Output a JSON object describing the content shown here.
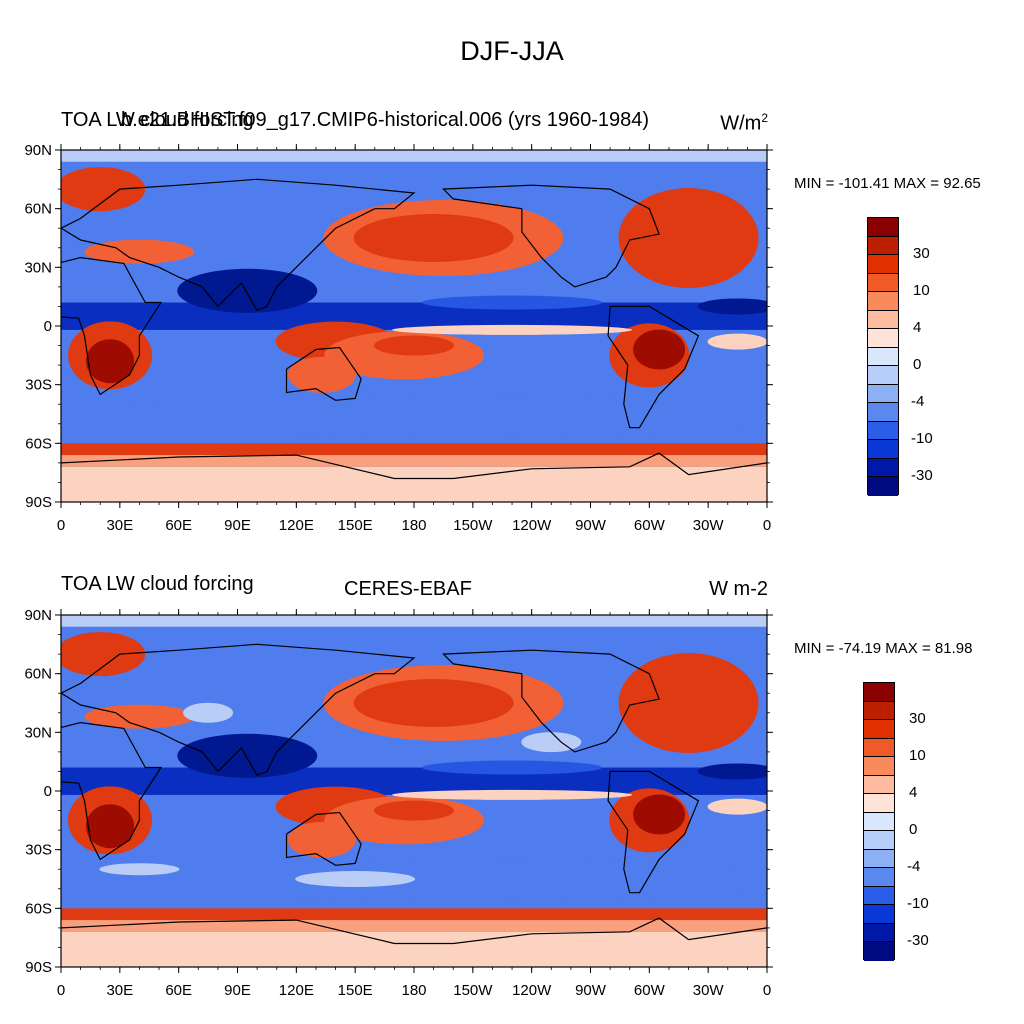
{
  "main_title": "DJF-JJA",
  "panels": [
    {
      "left_title": "TOA LW cloud forcing",
      "center_title": "b.e21.BHIST.f09_g17.CMIP6-historical.006 (yrs 1960-1984)",
      "units_main": "W/m",
      "units_sup": "2",
      "minmax": "MIN = -101.41 MAX =  92.65"
    },
    {
      "left_title": "TOA LW cloud forcing",
      "center_title": "CERES-EBAF",
      "units_main": "W m-2",
      "units_sup": "",
      "minmax": "MIN = -74.19 MAX =  81.98"
    }
  ],
  "lat_labels": [
    "90N",
    "60N",
    "30N",
    "0",
    "30S",
    "60S",
    "90S"
  ],
  "lon_labels": [
    "0",
    "30E",
    "60E",
    "90E",
    "120E",
    "150E",
    "180",
    "150W",
    "120W",
    "90W",
    "60W",
    "30W",
    "0"
  ],
  "colorbar": {
    "labels": [
      "30",
      "10",
      "4",
      "0",
      "-4",
      "-10",
      "-30"
    ],
    "colors": [
      "#8b0000",
      "#bd2000",
      "#e03000",
      "#f05a28",
      "#f88a5c",
      "#fdbba0",
      "#fee4d8",
      "#dae6fb",
      "#b8cefa",
      "#8db0f5",
      "#5b88ef",
      "#2c5de8",
      "#0a38d6",
      "#0018a8",
      "#000a80"
    ]
  },
  "map_colors": {
    "ocean_neutral": "#fdece4",
    "deep_red": "#9e0b00",
    "red": "#e03a12",
    "orange_red": "#f26035",
    "salmon": "#f9a07e",
    "light_pink": "#fcd3c0",
    "light_blue": "#b9cdf6",
    "blue": "#4f7ded",
    "mid_blue": "#2557e2",
    "dark_blue": "#0a2fc0",
    "navy": "#001890"
  }
}
